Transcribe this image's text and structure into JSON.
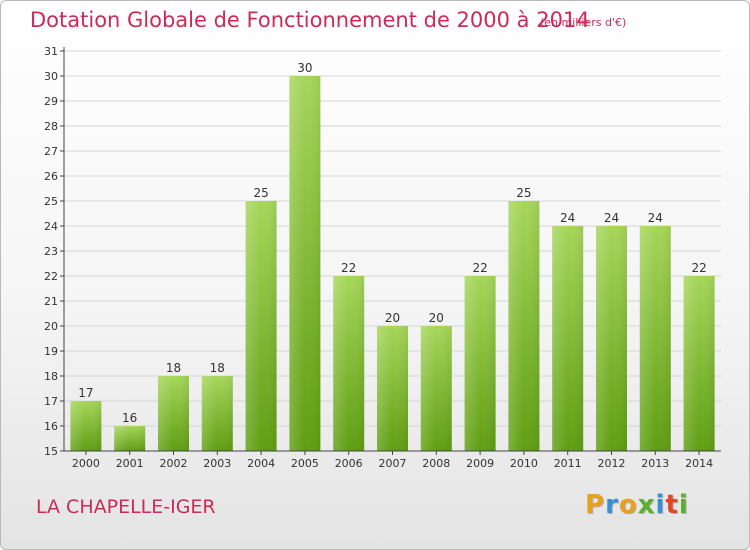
{
  "header": {
    "title": "Dotation Globale de Fonctionnement de 2000 à 2014",
    "unit": "(en milliers d'€)"
  },
  "footer": {
    "commune": "LA CHAPELLE-IGER",
    "logo_letters": [
      "P",
      "r",
      "o",
      "x",
      "i",
      "t",
      "i"
    ],
    "logo_colors": [
      "#e8a020",
      "#3a8fd0",
      "#e8a020",
      "#58b030",
      "#3a8fd0",
      "#e04828",
      "#58b030"
    ]
  },
  "colors": {
    "bar_light": "#a6d65a",
    "bar_dark": "#5f9e12",
    "grid": "#d6d6d6",
    "axis": "#444444",
    "accent": "#cc2a58"
  },
  "chart_data": {
    "type": "bar",
    "title": "Dotation Globale de Fonctionnement de 2000 à 2014",
    "xlabel": "",
    "ylabel": "",
    "ylim": [
      15,
      31
    ],
    "yticks": [
      15,
      16,
      17,
      18,
      19,
      20,
      21,
      22,
      23,
      24,
      25,
      26,
      27,
      28,
      29,
      30,
      31
    ],
    "grid": true,
    "categories": [
      "2000",
      "2001",
      "2002",
      "2003",
      "2004",
      "2005",
      "2006",
      "2007",
      "2008",
      "2009",
      "2010",
      "2011",
      "2012",
      "2013",
      "2014"
    ],
    "values": [
      17,
      16,
      18,
      18,
      25,
      30,
      22,
      20,
      20,
      22,
      25,
      24,
      24,
      24,
      22
    ]
  }
}
